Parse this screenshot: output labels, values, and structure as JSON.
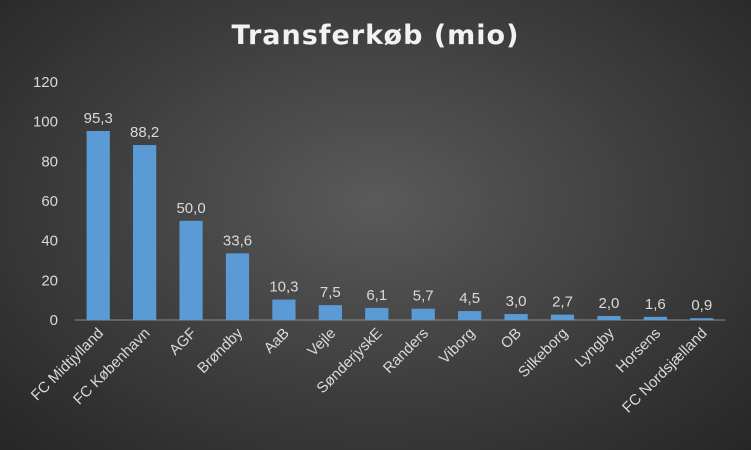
{
  "chart_data": {
    "type": "bar",
    "title": "Transferkøb (mio)",
    "xlabel": "",
    "ylabel": "",
    "ylim": [
      0,
      120
    ],
    "yticks": [
      "0",
      "20",
      "40",
      "60",
      "80",
      "100",
      "120"
    ],
    "grid": false,
    "legend": "none",
    "bar_color": "#5b9bd5",
    "categories": [
      "FC Midtjylland",
      "FC København",
      "AGF",
      "Brøndby",
      "AaB",
      "Vejle",
      "SønderjyskE",
      "Randers",
      "Viborg",
      "OB",
      "Silkeborg",
      "Lyngby",
      "Horsens",
      "FC Nordsjælland"
    ],
    "values": [
      95.3,
      88.2,
      50.0,
      33.6,
      10.3,
      7.5,
      6.1,
      5.7,
      4.5,
      3.0,
      2.7,
      2.0,
      1.6,
      0.9
    ],
    "data_labels": [
      "95,3",
      "88,2",
      "50,0",
      "33,6",
      "10,3",
      "7,5",
      "6,1",
      "5,7",
      "4,5",
      "3,0",
      "2,7",
      "2,0",
      "1,6",
      "0,9"
    ]
  }
}
